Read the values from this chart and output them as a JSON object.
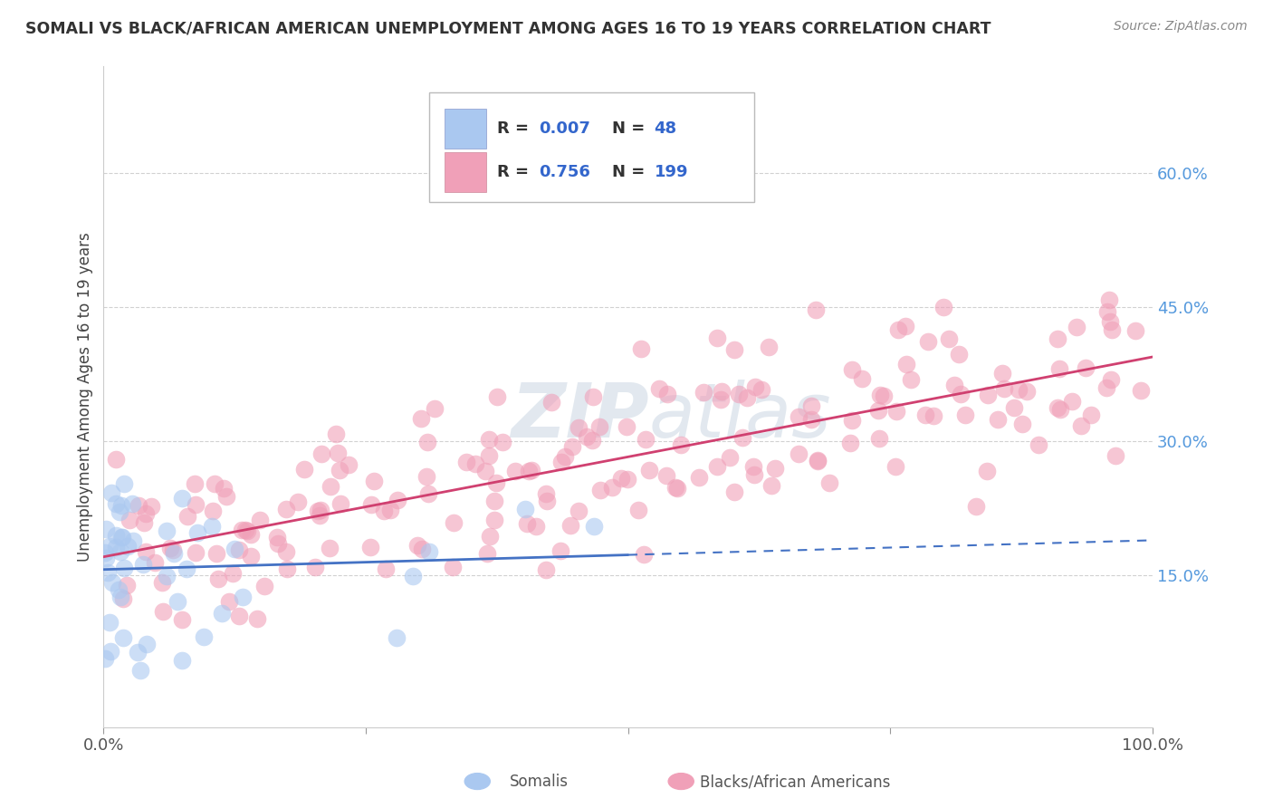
{
  "title": "SOMALI VS BLACK/AFRICAN AMERICAN UNEMPLOYMENT AMONG AGES 16 TO 19 YEARS CORRELATION CHART",
  "source": "Source: ZipAtlas.com",
  "ylabel": "Unemployment Among Ages 16 to 19 years",
  "xlim": [
    0.0,
    1.0
  ],
  "ylim": [
    -0.02,
    0.72
  ],
  "yticks": [
    0.15,
    0.3,
    0.45,
    0.6
  ],
  "ytick_labels": [
    "15.0%",
    "30.0%",
    "45.0%",
    "60.0%"
  ],
  "xticks": [
    0.0,
    0.25,
    0.5,
    0.75,
    1.0
  ],
  "xtick_labels": [
    "0.0%",
    "",
    "",
    "",
    "100.0%"
  ],
  "somali_color": "#aac8f0",
  "black_color": "#f0a0b8",
  "somali_line_color": "#4472c4",
  "black_line_color": "#d04070",
  "background_color": "#ffffff",
  "grid_color": "#cccccc",
  "watermark_color": "#dde5ed"
}
